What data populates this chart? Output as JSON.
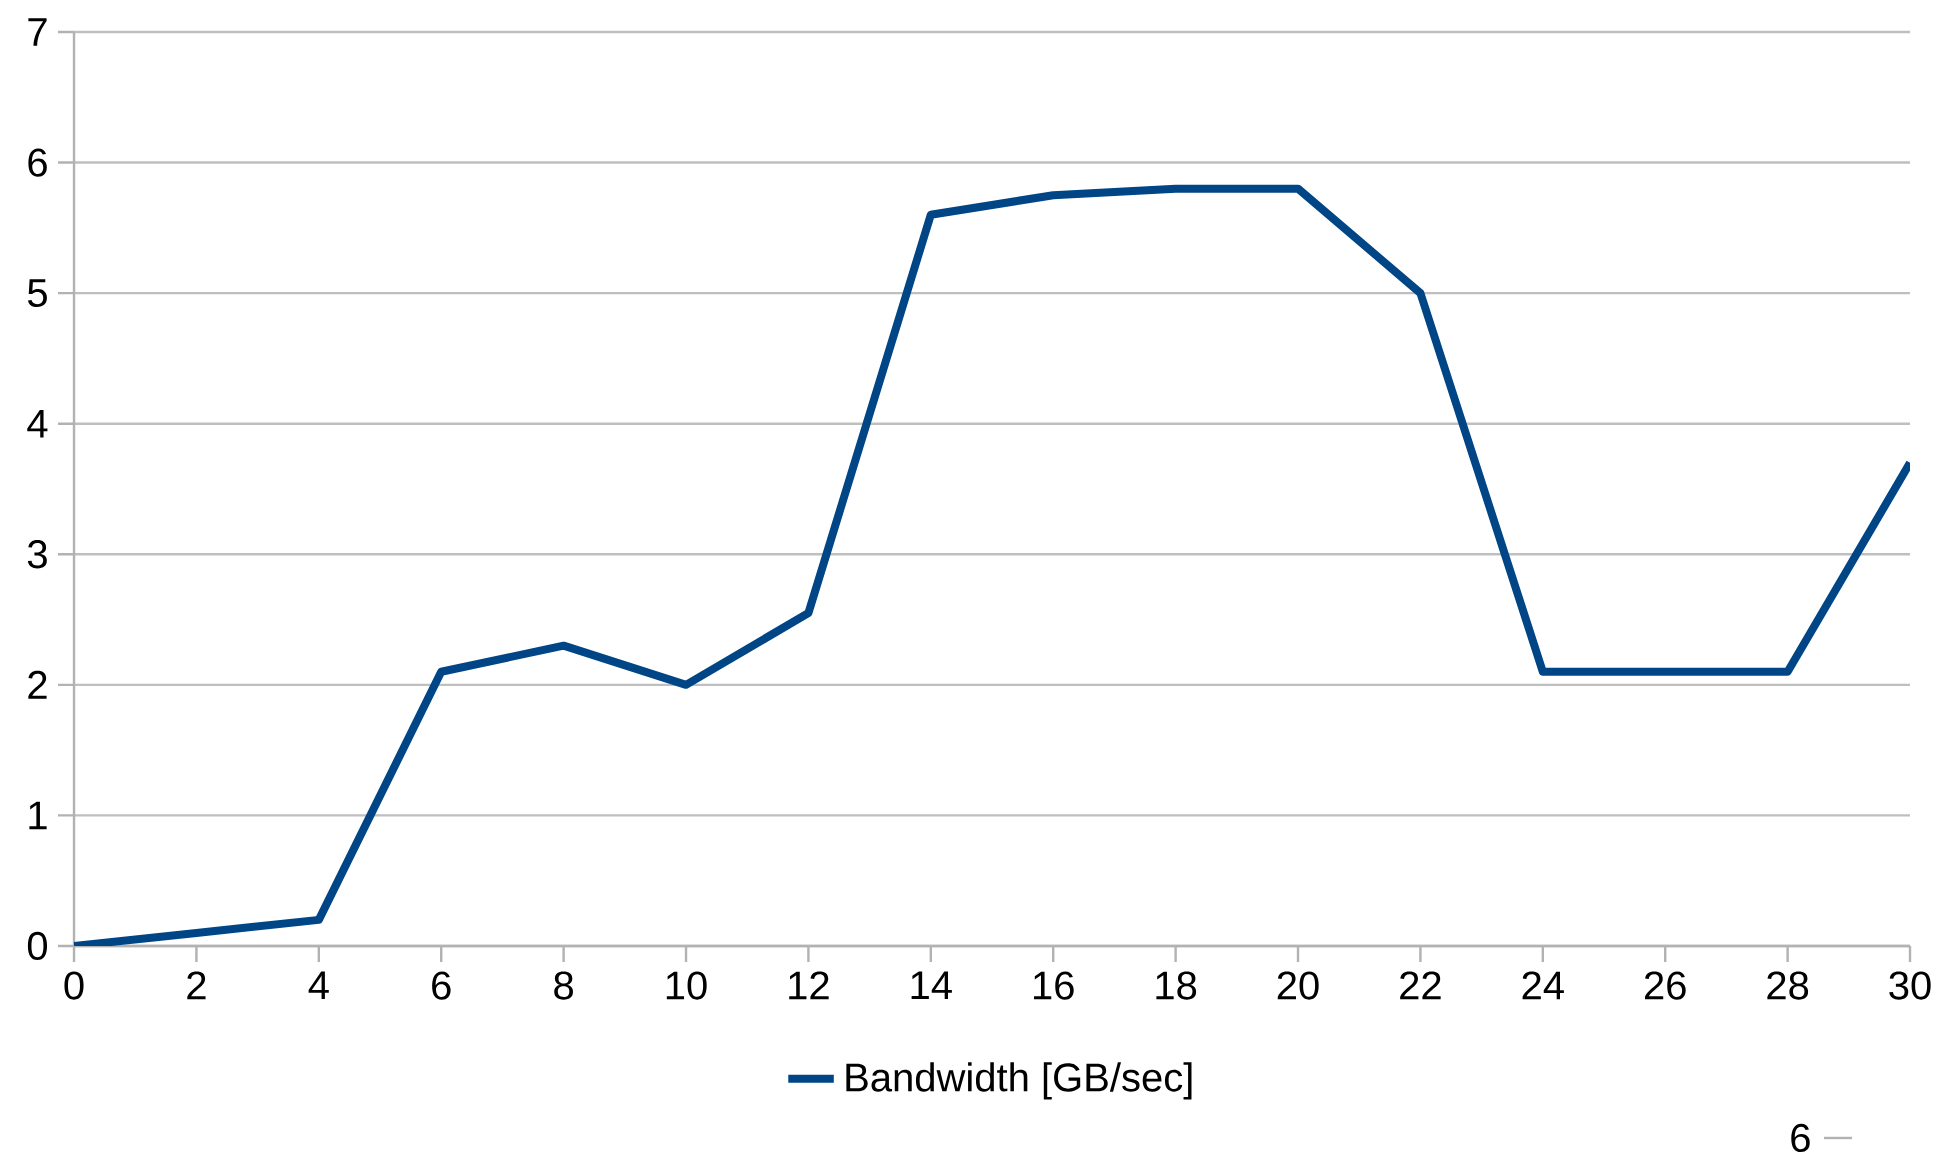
{
  "chart_data": {
    "type": "line",
    "x": [
      0,
      2,
      4,
      6,
      8,
      10,
      12,
      14,
      16,
      18,
      20,
      22,
      24,
      26,
      28,
      30
    ],
    "series": [
      {
        "name": "Bandwidth [GB/sec]",
        "color": "#004586",
        "values": [
          0,
          0.1,
          0.2,
          2.1,
          2.3,
          2.0,
          2.55,
          5.6,
          5.75,
          5.8,
          5.8,
          5.0,
          2.1,
          2.1,
          2.1,
          3.7
        ]
      }
    ],
    "xlim": [
      0,
      30
    ],
    "xticks": [
      0,
      2,
      4,
      6,
      8,
      10,
      12,
      14,
      16,
      18,
      20,
      22,
      24,
      26,
      28,
      30
    ],
    "ylim": [
      0,
      7
    ],
    "yticks": [
      0,
      1,
      2,
      3,
      4,
      5,
      6,
      7
    ],
    "grid": "y",
    "legend": "bottom",
    "marker": "none",
    "line_style": "solid",
    "annotations": [
      "6"
    ]
  }
}
